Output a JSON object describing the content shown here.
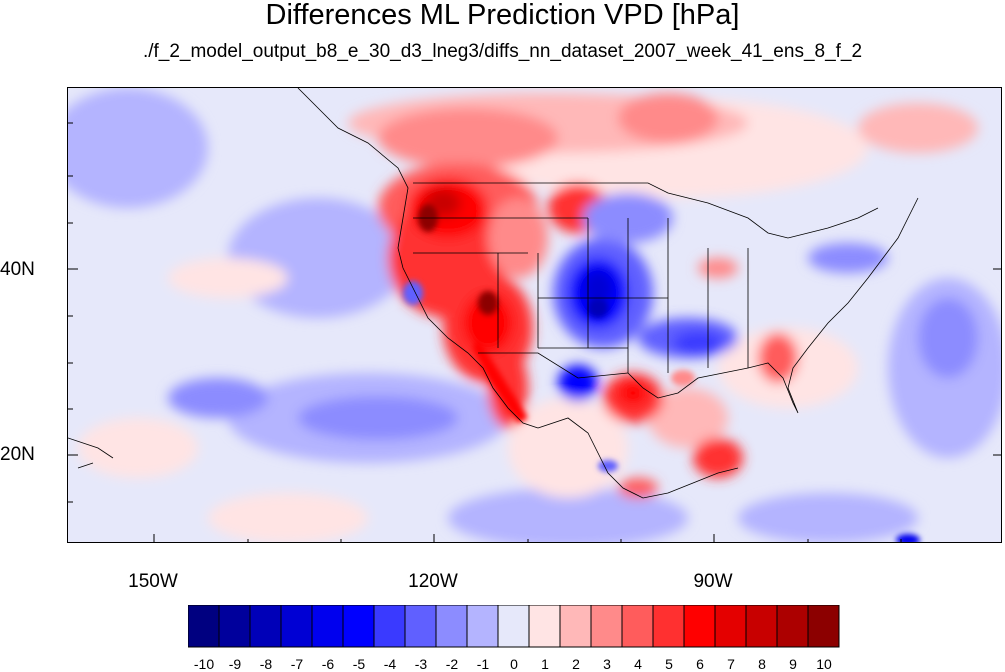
{
  "title": "Differences ML Prediction VPD [hPa]",
  "subtitle": "./f_2_model_output_b8_e_30_d3_lneg3/diffs_nn_dataset_2007_week_41_ens_8_f_2",
  "map": {
    "lat_labels": [
      "40N",
      "20N"
    ],
    "lon_labels": [
      "150W",
      "120W",
      "90W"
    ]
  },
  "colorbar": {
    "labels": [
      "-10",
      "-9",
      "-8",
      "-7",
      "-6",
      "-5",
      "-4",
      "-3",
      "-2",
      "-1",
      "0",
      "1",
      "2",
      "3",
      "4",
      "5",
      "6",
      "7",
      "8",
      "9",
      "10"
    ],
    "colors": [
      "#000080",
      "#00009c",
      "#0000b8",
      "#0000d4",
      "#0000ee",
      "#0000ff",
      "#3a3aff",
      "#6060ff",
      "#8c8cff",
      "#b4b4ff",
      "#e6e8fa",
      "#ffe4e4",
      "#ffb8b8",
      "#ff8a8a",
      "#ff5c5c",
      "#ff3030",
      "#ff0000",
      "#e40000",
      "#c80000",
      "#ac0000",
      "#8c0000"
    ]
  }
}
